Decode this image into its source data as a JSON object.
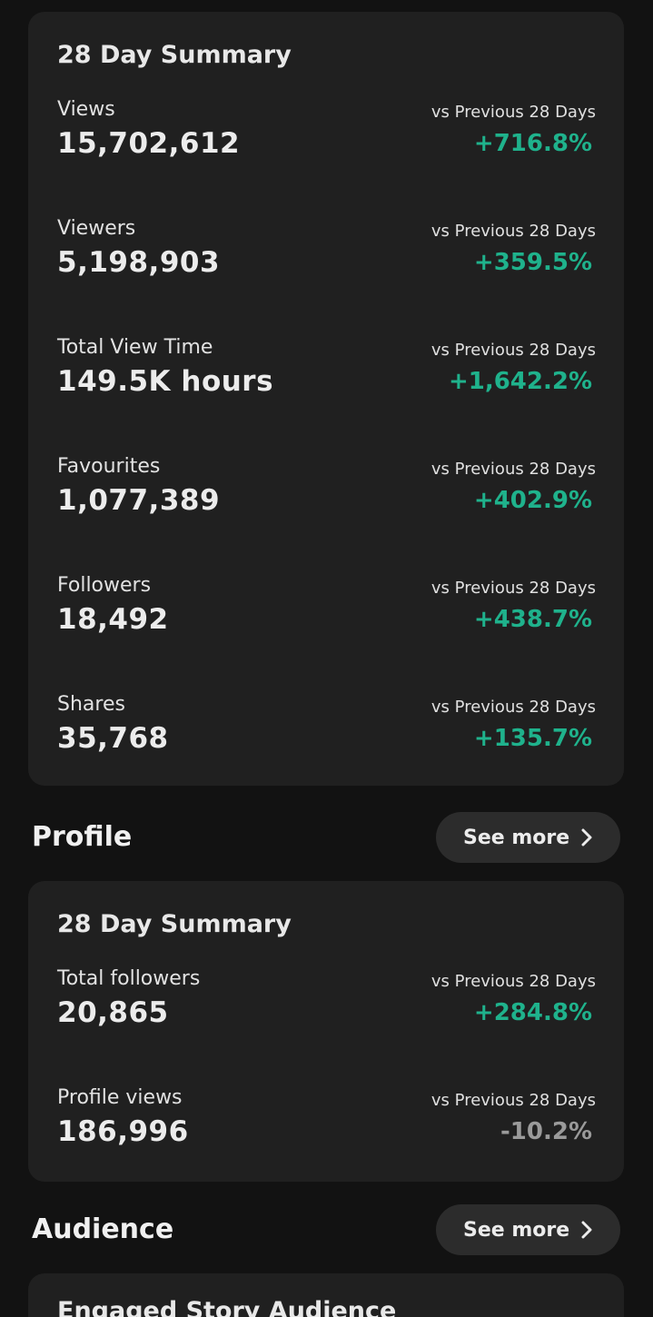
{
  "summary_card": {
    "title": "28 Day Summary",
    "metrics": [
      {
        "label": "Views",
        "value": "15,702,612",
        "compare": "vs Previous 28 Days",
        "change": "+716.8%"
      },
      {
        "label": "Viewers",
        "value": "5,198,903",
        "compare": "vs Previous 28 Days",
        "change": "+359.5%"
      },
      {
        "label": "Total View Time",
        "value": "149.5K hours",
        "compare": "vs Previous 28 Days",
        "change": "+1,642.2%"
      },
      {
        "label": "Favourites",
        "value": "1,077,389",
        "compare": "vs Previous 28 Days",
        "change": "+402.9%"
      },
      {
        "label": "Followers",
        "value": "18,492",
        "compare": "vs Previous 28 Days",
        "change": "+438.7%"
      },
      {
        "label": "Shares",
        "value": "35,768",
        "compare": "vs Previous 28 Days",
        "change": "+135.7%"
      }
    ]
  },
  "profile_section": {
    "title": "Profile",
    "see_more_label": "See more",
    "card": {
      "title": "28 Day Summary",
      "metrics": [
        {
          "label": "Total followers",
          "value": "20,865",
          "compare": "vs Previous 28 Days",
          "change": "+284.8%"
        },
        {
          "label": "Profile views",
          "value": "186,996",
          "compare": "vs Previous 28 Days",
          "change": "-10.2%"
        }
      ]
    }
  },
  "audience_section": {
    "title": "Audience",
    "see_more_label": "See more",
    "card": {
      "title": "Engaged Story Audience"
    }
  },
  "colors": {
    "background": "#121212",
    "card": "#202020",
    "positive_change": "#1fb28c",
    "negative_change": "#9a9a9a",
    "pill_button": "#2c2c2c"
  }
}
